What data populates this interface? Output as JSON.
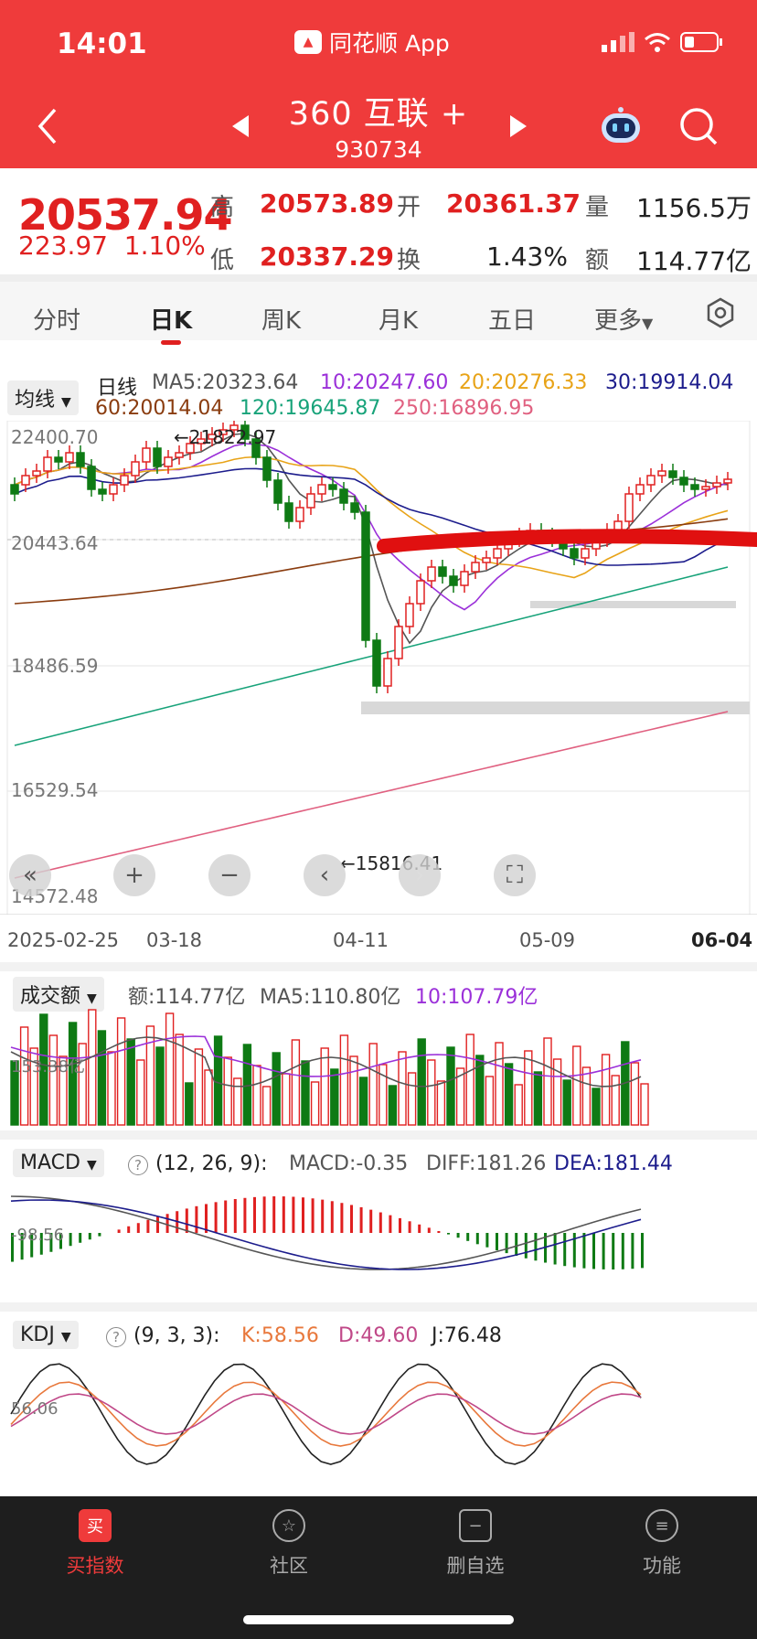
{
  "status": {
    "time": "14:01",
    "app": "同花顺 App"
  },
  "header": {
    "title": "360 互联 +",
    "code": "930734"
  },
  "quote": {
    "price": "20537.94",
    "change": "223.97",
    "pct": "1.10%",
    "high_label": "高",
    "high": "20573.89",
    "open_label": "开",
    "open": "20361.37",
    "vol_label": "量",
    "vol": "1156.5万",
    "low_label": "低",
    "low": "20337.29",
    "turn_label": "换",
    "turn": "1.43%",
    "amt_label": "额",
    "amt": "114.77亿"
  },
  "tabs": [
    "分时",
    "日K",
    "周K",
    "月K",
    "五日",
    "更多"
  ],
  "ma": {
    "dropdown": "均线",
    "label": "日线",
    "ma5": "MA5:20323.64",
    "ma10": "10:20247.60",
    "ma20": "20:20276.33",
    "ma30": "30:19914.04",
    "ma60": "60:20014.04",
    "ma120": "120:19645.87",
    "ma250": "250:16896.95"
  },
  "colors": {
    "red": "#e02020",
    "green": "#0e7a14",
    "ma5": "#555555",
    "ma10": "#9b30d9",
    "ma20": "#e8a317",
    "ma30": "#1c1c8c",
    "ma60": "#8a3c0f",
    "ma120": "#18a37a",
    "ma250": "#e06080"
  },
  "price_axis": [
    "22400.70",
    "20443.64",
    "18486.59",
    "16529.54",
    "14572.48"
  ],
  "annotations": {
    "max": "←21822.97",
    "min": "←15816.41"
  },
  "dates": [
    "2025-02-25",
    "03-18",
    "04-11",
    "05-09",
    "06-04"
  ],
  "volume": {
    "dropdown": "成交额",
    "amt": "额:114.77亿",
    "ma5": "MA5:110.80亿",
    "ma10": "10:107.79亿",
    "axis": "153.38亿"
  },
  "macd": {
    "dropdown": "MACD",
    "params": "(12, 26, 9):",
    "macd": "MACD:-0.35",
    "diff": "DIFF:181.26",
    "dea": "DEA:181.44",
    "axis": "-98.56"
  },
  "kdj": {
    "dropdown": "KDJ",
    "params": "(9, 3, 3):",
    "k": "K:58.56",
    "d": "D:49.60",
    "j": "J:76.48",
    "axis": "56.06"
  },
  "nav": [
    "买指数",
    "社区",
    "删自选",
    "功能"
  ]
}
